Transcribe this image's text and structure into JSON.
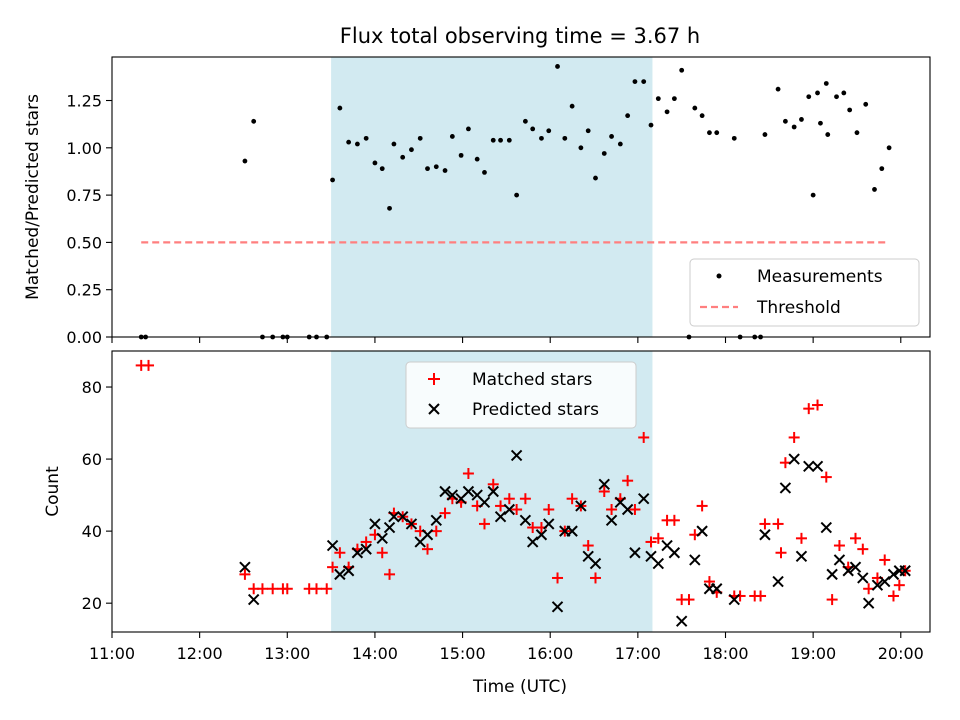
{
  "figure": {
    "title": "Flux total observing time = 3.67 h"
  },
  "chart_data": [
    {
      "type": "scatter",
      "ylabel": "Matched/Predicted stars",
      "xlabel": "",
      "xlim": [
        "11:00",
        "20:20"
      ],
      "ylim": [
        0,
        1.48
      ],
      "y_ticks": [
        "0.00",
        "0.25",
        "0.50",
        "0.75",
        "1.00",
        "1.25"
      ],
      "x_ticks": [
        "11:00",
        "12:00",
        "13:00",
        "14:00",
        "15:00",
        "16:00",
        "17:00",
        "18:00",
        "19:00",
        "20:00"
      ],
      "x_ticklabels_shown": false,
      "shaded_interval": {
        "from": "13:30",
        "to": "17:10",
        "color": "#add8e6"
      },
      "legend_position": "lower right",
      "legend": [
        {
          "label": "Measurements",
          "marker": "dot",
          "color": "#000000"
        },
        {
          "label": "Threshold",
          "marker": "dashed-line",
          "color": "#ff7f7f"
        }
      ],
      "threshold": {
        "y": 0.5,
        "x_from": "11:20",
        "x_to": "19:50"
      },
      "series": [
        {
          "name": "Measurements",
          "color": "#000000",
          "points": [
            [
              "11:20",
              0
            ],
            [
              "11:23",
              0
            ],
            [
              "12:31",
              0.93
            ],
            [
              "12:37",
              1.14
            ],
            [
              "12:43",
              0
            ],
            [
              "12:50",
              0
            ],
            [
              "12:57",
              0
            ],
            [
              "13:00",
              0
            ],
            [
              "13:15",
              0
            ],
            [
              "13:20",
              0
            ],
            [
              "13:27",
              0
            ],
            [
              "13:31",
              0.83
            ],
            [
              "13:36",
              1.21
            ],
            [
              "13:42",
              1.03
            ],
            [
              "13:48",
              1.02
            ],
            [
              "13:54",
              1.05
            ],
            [
              "14:00",
              0.92
            ],
            [
              "14:05",
              0.89
            ],
            [
              "14:10",
              0.68
            ],
            [
              "14:13",
              1.02
            ],
            [
              "14:19",
              0.95
            ],
            [
              "14:25",
              0.99
            ],
            [
              "14:31",
              1.05
            ],
            [
              "14:36",
              0.89
            ],
            [
              "14:42",
              0.9
            ],
            [
              "14:48",
              0.88
            ],
            [
              "14:53",
              1.06
            ],
            [
              "14:59",
              0.96
            ],
            [
              "15:04",
              1.1
            ],
            [
              "15:10",
              0.94
            ],
            [
              "15:15",
              0.87
            ],
            [
              "15:21",
              1.04
            ],
            [
              "15:26",
              1.04
            ],
            [
              "15:32",
              1.04
            ],
            [
              "15:37",
              0.75
            ],
            [
              "15:43",
              1.14
            ],
            [
              "15:48",
              1.1
            ],
            [
              "15:54",
              1.05
            ],
            [
              "15:59",
              1.09
            ],
            [
              "16:05",
              1.43
            ],
            [
              "16:10",
              1.05
            ],
            [
              "16:15",
              1.22
            ],
            [
              "16:21",
              1.0
            ],
            [
              "16:26",
              1.09
            ],
            [
              "16:31",
              0.84
            ],
            [
              "16:37",
              0.97
            ],
            [
              "16:42",
              1.06
            ],
            [
              "16:48",
              1.02
            ],
            [
              "16:53",
              1.17
            ],
            [
              "16:58",
              1.35
            ],
            [
              "17:04",
              1.35
            ],
            [
              "17:09",
              1.12
            ],
            [
              "17:14",
              1.26
            ],
            [
              "17:20",
              1.19
            ],
            [
              "17:25",
              1.26
            ],
            [
              "17:30",
              1.41
            ],
            [
              "17:35",
              0
            ],
            [
              "17:39",
              1.21
            ],
            [
              "17:44",
              1.17
            ],
            [
              "17:49",
              1.08
            ],
            [
              "17:54",
              1.08
            ],
            [
              "18:06",
              1.05
            ],
            [
              "18:10",
              0
            ],
            [
              "18:20",
              0
            ],
            [
              "18:24",
              0
            ],
            [
              "18:27",
              1.07
            ],
            [
              "18:36",
              1.31
            ],
            [
              "18:41",
              1.14
            ],
            [
              "18:47",
              1.11
            ],
            [
              "18:52",
              1.15
            ],
            [
              "18:57",
              1.27
            ],
            [
              "19:03",
              1.29
            ],
            [
              "19:09",
              1.34
            ],
            [
              "19:00",
              0.75
            ],
            [
              "19:05",
              1.13
            ],
            [
              "19:10",
              1.07
            ],
            [
              "19:16",
              1.27
            ],
            [
              "19:21",
              1.29
            ],
            [
              "19:25",
              1.2
            ],
            [
              "19:30",
              1.08
            ],
            [
              "19:36",
              1.23
            ],
            [
              "19:42",
              0.78
            ],
            [
              "19:47",
              0.89
            ],
            [
              "19:52",
              1.0
            ]
          ]
        }
      ]
    },
    {
      "type": "scatter",
      "ylabel": "Count",
      "xlabel": "Time (UTC)",
      "xlim": [
        "11:00",
        "20:20"
      ],
      "ylim": [
        12,
        90
      ],
      "y_ticks": [
        "20",
        "40",
        "60",
        "80"
      ],
      "x_ticks": [
        "11:00",
        "12:00",
        "13:00",
        "14:00",
        "15:00",
        "16:00",
        "17:00",
        "18:00",
        "19:00",
        "20:00"
      ],
      "shaded_interval": {
        "from": "13:30",
        "to": "17:10",
        "color": "#add8e6"
      },
      "legend_position": "upper center",
      "legend": [
        {
          "label": "Matched stars",
          "marker": "plus",
          "color": "#ff0000"
        },
        {
          "label": "Predicted stars",
          "marker": "x",
          "color": "#000000"
        }
      ],
      "series": [
        {
          "name": "Matched stars",
          "marker": "plus",
          "color": "#ff0000",
          "points": [
            [
              "11:20",
              86
            ],
            [
              "11:25",
              86
            ],
            [
              "12:31",
              28
            ],
            [
              "12:37",
              24
            ],
            [
              "12:43",
              24
            ],
            [
              "12:50",
              24
            ],
            [
              "12:57",
              24
            ],
            [
              "13:00",
              24
            ],
            [
              "13:15",
              24
            ],
            [
              "13:20",
              24
            ],
            [
              "13:27",
              24
            ],
            [
              "13:31",
              30
            ],
            [
              "13:36",
              34
            ],
            [
              "13:42",
              30
            ],
            [
              "13:48",
              35
            ],
            [
              "13:54",
              37
            ],
            [
              "14:00",
              39
            ],
            [
              "14:05",
              34
            ],
            [
              "14:10",
              28
            ],
            [
              "14:13",
              45
            ],
            [
              "14:19",
              44
            ],
            [
              "14:25",
              42
            ],
            [
              "14:31",
              40
            ],
            [
              "14:36",
              35
            ],
            [
              "14:42",
              40
            ],
            [
              "14:48",
              45
            ],
            [
              "14:53",
              49
            ],
            [
              "14:59",
              48
            ],
            [
              "15:04",
              56
            ],
            [
              "15:10",
              47
            ],
            [
              "15:15",
              42
            ],
            [
              "15:21",
              53
            ],
            [
              "15:26",
              47
            ],
            [
              "15:32",
              49
            ],
            [
              "15:37",
              46
            ],
            [
              "15:43",
              49
            ],
            [
              "15:48",
              41
            ],
            [
              "15:54",
              41
            ],
            [
              "15:59",
              46
            ],
            [
              "16:05",
              27
            ],
            [
              "16:10",
              40
            ],
            [
              "16:15",
              49
            ],
            [
              "16:21",
              47
            ],
            [
              "16:26",
              36
            ],
            [
              "16:31",
              27
            ],
            [
              "16:37",
              51
            ],
            [
              "16:42",
              46
            ],
            [
              "16:48",
              49
            ],
            [
              "16:53",
              54
            ],
            [
              "16:58",
              46
            ],
            [
              "17:04",
              66
            ],
            [
              "17:09",
              37
            ],
            [
              "17:14",
              38
            ],
            [
              "17:20",
              43
            ],
            [
              "17:25",
              43
            ],
            [
              "17:30",
              21
            ],
            [
              "17:35",
              21
            ],
            [
              "17:39",
              39
            ],
            [
              "17:44",
              47
            ],
            [
              "17:49",
              26
            ],
            [
              "17:54",
              23
            ],
            [
              "18:06",
              22
            ],
            [
              "18:10",
              22
            ],
            [
              "18:20",
              22
            ],
            [
              "18:24",
              22
            ],
            [
              "18:27",
              42
            ],
            [
              "18:36",
              42
            ],
            [
              "18:38",
              34
            ],
            [
              "18:41",
              59
            ],
            [
              "18:47",
              66
            ],
            [
              "18:52",
              38
            ],
            [
              "18:57",
              74
            ],
            [
              "19:03",
              75
            ],
            [
              "19:09",
              55
            ],
            [
              "19:13",
              21
            ],
            [
              "19:18",
              36
            ],
            [
              "19:24",
              30
            ],
            [
              "19:29",
              38
            ],
            [
              "19:34",
              35
            ],
            [
              "19:38",
              24
            ],
            [
              "19:44",
              27
            ],
            [
              "19:49",
              32
            ],
            [
              "19:55",
              22
            ],
            [
              "19:59",
              25
            ],
            [
              "20:03",
              29
            ]
          ]
        },
        {
          "name": "Predicted stars",
          "marker": "x",
          "color": "#000000",
          "points": [
            [
              "12:31",
              30
            ],
            [
              "12:37",
              21
            ],
            [
              "13:31",
              36
            ],
            [
              "13:36",
              28
            ],
            [
              "13:42",
              29
            ],
            [
              "13:48",
              34
            ],
            [
              "13:54",
              35
            ],
            [
              "14:00",
              42
            ],
            [
              "14:05",
              38
            ],
            [
              "14:10",
              41
            ],
            [
              "14:13",
              44
            ],
            [
              "14:19",
              44
            ],
            [
              "14:25",
              42
            ],
            [
              "14:31",
              37
            ],
            [
              "14:36",
              39
            ],
            [
              "14:42",
              43
            ],
            [
              "14:48",
              51
            ],
            [
              "14:53",
              50
            ],
            [
              "14:59",
              49
            ],
            [
              "15:04",
              51
            ],
            [
              "15:10",
              50
            ],
            [
              "15:15",
              48
            ],
            [
              "15:21",
              51
            ],
            [
              "15:26",
              44
            ],
            [
              "15:32",
              46
            ],
            [
              "15:37",
              61
            ],
            [
              "15:43",
              43
            ],
            [
              "15:48",
              37
            ],
            [
              "15:54",
              39
            ],
            [
              "15:59",
              42
            ],
            [
              "16:05",
              19
            ],
            [
              "16:10",
              40
            ],
            [
              "16:15",
              40
            ],
            [
              "16:21",
              47
            ],
            [
              "16:26",
              33
            ],
            [
              "16:31",
              31
            ],
            [
              "16:37",
              53
            ],
            [
              "16:42",
              43
            ],
            [
              "16:48",
              48
            ],
            [
              "16:53",
              46
            ],
            [
              "16:58",
              34
            ],
            [
              "17:04",
              49
            ],
            [
              "17:09",
              33
            ],
            [
              "17:14",
              31
            ],
            [
              "17:20",
              36
            ],
            [
              "17:25",
              34
            ],
            [
              "17:30",
              15
            ],
            [
              "17:39",
              32
            ],
            [
              "17:44",
              40
            ],
            [
              "17:49",
              24
            ],
            [
              "17:54",
              24
            ],
            [
              "18:06",
              21
            ],
            [
              "18:27",
              39
            ],
            [
              "18:36",
              26
            ],
            [
              "18:41",
              52
            ],
            [
              "18:47",
              60
            ],
            [
              "18:52",
              33
            ],
            [
              "18:57",
              58
            ],
            [
              "19:03",
              58
            ],
            [
              "19:09",
              41
            ],
            [
              "19:13",
              28
            ],
            [
              "19:18",
              32
            ],
            [
              "19:24",
              29
            ],
            [
              "19:29",
              30
            ],
            [
              "19:34",
              27
            ],
            [
              "19:38",
              20
            ],
            [
              "19:44",
              25
            ],
            [
              "19:49",
              26
            ],
            [
              "19:55",
              28
            ],
            [
              "19:59",
              29
            ],
            [
              "20:03",
              29
            ]
          ]
        }
      ]
    }
  ]
}
